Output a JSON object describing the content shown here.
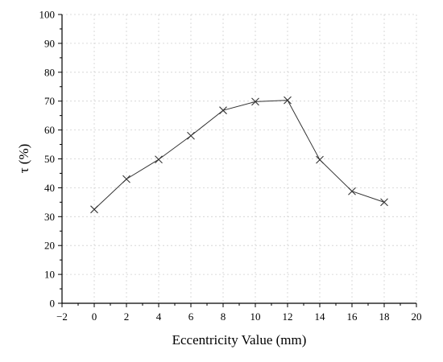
{
  "chart_data": {
    "type": "line",
    "title": "",
    "xlabel": "Eccentricity Value (mm)",
    "ylabel": "τ (%)",
    "xlim": [
      -2,
      20
    ],
    "ylim": [
      0,
      100
    ],
    "xticks": [
      -2,
      0,
      2,
      4,
      6,
      8,
      10,
      12,
      14,
      16,
      18,
      20
    ],
    "yticks": [
      0,
      10,
      20,
      30,
      40,
      50,
      60,
      70,
      80,
      90,
      100
    ],
    "grid": true,
    "marker": "x",
    "series": [
      {
        "x": [
          0,
          2,
          4,
          6,
          8,
          10,
          12,
          14,
          16,
          18
        ],
        "y": [
          32.5,
          43,
          49.8,
          58,
          66.8,
          69.8,
          70.3,
          49.7,
          38.8,
          35
        ]
      }
    ]
  }
}
